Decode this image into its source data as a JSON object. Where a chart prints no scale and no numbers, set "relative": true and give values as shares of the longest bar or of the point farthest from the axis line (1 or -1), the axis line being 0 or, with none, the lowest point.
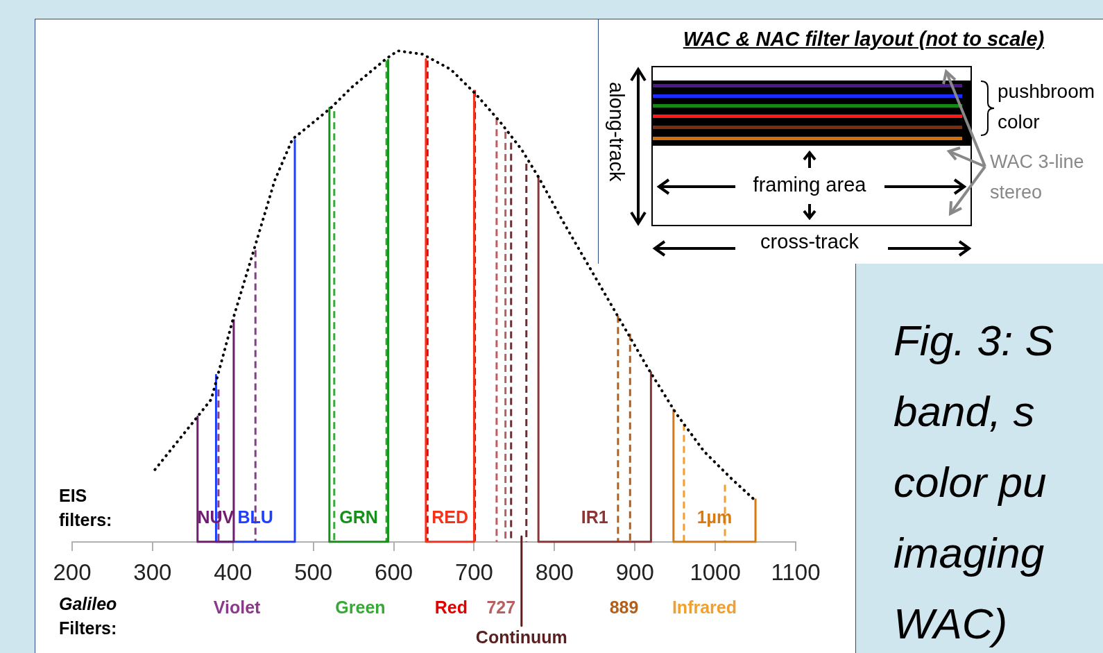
{
  "chart_data": {
    "type": "line",
    "relative": true,
    "xlim": [
      200,
      1100
    ],
    "xticks": [
      200,
      300,
      400,
      500,
      600,
      700,
      800,
      900,
      1000,
      1100
    ],
    "tick_labels": "x",
    "grid": false,
    "legend": false,
    "marker": "none",
    "line_style": "solid",
    "annotations": [
      "EIS filters:",
      "Galileo Filters:",
      "WAC & NAC filter layout (not to scale)",
      "along-track",
      "framing area",
      "cross-track",
      "pushbroom color",
      "WAC 3-line stereo",
      "Fig. 3: S\nband, s\ncolor pu\nimaging\nWAC)"
    ],
    "series": [
      {
        "color": "#000000",
        "line_style": "dotted",
        "x": [
          303,
          356,
          373,
          400,
          426,
          452,
          474,
          496,
          522,
          548,
          590,
          605,
          636,
          671,
          702,
          732,
          759,
          780,
          811,
          846,
          881,
          916,
          951,
          986,
          1021,
          1047
        ],
        "values": [
          0.147,
          0.255,
          0.29,
          0.453,
          0.594,
          0.736,
          0.82,
          0.849,
          0.884,
          0.926,
          0.983,
          1,
          0.993,
          0.962,
          0.912,
          0.856,
          0.799,
          0.743,
          0.651,
          0.552,
          0.453,
          0.354,
          0.262,
          0.184,
          0.127,
          0.088
        ]
      },
      {
        "name": "NUV",
        "color": "#6f1d6f",
        "x": [
          356,
          356,
          401,
          401
        ],
        "values": [
          0.255,
          0,
          0,
          0.453
        ]
      },
      {
        "name": "BLU",
        "color": "#1f3fff",
        "x": [
          379,
          379,
          477,
          477
        ],
        "values": [
          0.34,
          0,
          0,
          0.82
        ]
      },
      {
        "name": "GRN",
        "color": "#15901a",
        "x": [
          520,
          520,
          593,
          593
        ],
        "values": [
          0.884,
          0,
          0,
          0.983
        ]
      },
      {
        "name": "RED",
        "color": "#f5331c",
        "x": [
          640,
          640,
          700,
          700
        ],
        "values": [
          0.983,
          0,
          0,
          0.92
        ]
      },
      {
        "name": "IR1",
        "color": "#8e3434",
        "x": [
          780,
          780,
          920,
          920
        ],
        "values": [
          0.743,
          0,
          0,
          0.347
        ]
      },
      {
        "name": "1µm",
        "color": "#d87a10",
        "x": [
          948,
          948,
          1050,
          1050
        ],
        "values": [
          0.269,
          0,
          0,
          0.088
        ]
      },
      {
        "name": "Violet",
        "color": "#8a3a8a",
        "line_style": "dashed",
        "x": [
          382,
          382,
          null,
          428,
          428
        ],
        "values": [
          0.31,
          0,
          null,
          0.594,
          0
        ]
      },
      {
        "name": "Green",
        "color": "#38a838",
        "line_style": "dashed",
        "x": [
          526,
          526,
          null,
          591,
          591
        ],
        "values": [
          0.877,
          0,
          null,
          0.98,
          0
        ]
      },
      {
        "name": "Red",
        "color": "#e00000",
        "line_style": "dashed",
        "x": [
          642,
          642,
          null,
          701,
          701
        ],
        "values": [
          0.98,
          0,
          null,
          0.92,
          0
        ]
      },
      {
        "name": "727",
        "color": "#b86060",
        "line_style": "dashed",
        "x": [
          728,
          728,
          null,
          739,
          739
        ],
        "values": [
          0.863,
          0,
          null,
          0.835,
          0
        ]
      },
      {
        "color": "#6e2c2c",
        "line_style": "dashed",
        "x": [
          746,
          746,
          null,
          765,
          765
        ],
        "values": [
          0.813,
          0,
          null,
          0.77,
          0
        ]
      },
      {
        "name": "889",
        "color": "#b0601c",
        "line_style": "dashed",
        "x": [
          879,
          879,
          null,
          894,
          894
        ],
        "values": [
          0.46,
          0,
          null,
          0.424,
          0
        ]
      },
      {
        "name": "Infrared",
        "color": "#f0a030",
        "line_style": "dashed",
        "x": [
          961,
          961,
          null,
          1012,
          1012
        ],
        "values": [
          0.24,
          0,
          null,
          0.116,
          0
        ]
      },
      {
        "name": "Continuum",
        "color": "#5a1e1e",
        "x": [
          759,
          759
        ],
        "values": [
          0.011,
          -0.171
        ]
      }
    ]
  }
}
